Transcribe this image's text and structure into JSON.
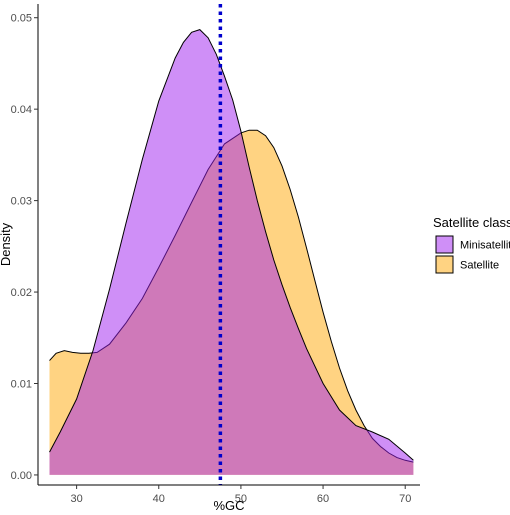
{
  "chart_data": {
    "type": "area",
    "subtype": "density",
    "xlabel": "%GC",
    "ylabel": "Density",
    "xlim": [
      25.3,
      71.8
    ],
    "ylim": [
      -0.0011,
      0.0515
    ],
    "x_ticks": [
      30,
      40,
      50,
      60,
      70
    ],
    "y_ticks": [
      0.0,
      0.01,
      0.02,
      0.03,
      0.04,
      0.05
    ],
    "y_tick_labels": [
      "0.00",
      "0.01",
      "0.02",
      "0.03",
      "0.04",
      "0.05"
    ],
    "x_tick_labels": [
      "30",
      "40",
      "50",
      "60",
      "70"
    ],
    "grid": false,
    "legend": {
      "title": "Satellite class",
      "position": "right"
    },
    "vline": {
      "x": 47.5,
      "color": "#0000cc",
      "style": "dotted"
    },
    "series": [
      {
        "name": "Satellite",
        "color": "#ffc04d",
        "opacity": 0.7,
        "x": [
          26.7,
          27.5,
          28.5,
          29.5,
          30.5,
          31.5,
          32.5,
          34,
          36,
          38,
          40,
          42,
          44,
          46,
          48,
          50,
          51,
          52,
          53,
          54,
          55,
          56,
          57,
          58,
          59,
          60,
          61,
          62,
          63,
          64,
          65,
          66,
          67,
          68,
          69,
          70,
          71
        ],
        "y": [
          0.0125,
          0.0133,
          0.0136,
          0.0134,
          0.0133,
          0.0133,
          0.0134,
          0.0143,
          0.0166,
          0.0193,
          0.0227,
          0.0262,
          0.0298,
          0.0334,
          0.0362,
          0.0374,
          0.0377,
          0.0377,
          0.0371,
          0.0358,
          0.0338,
          0.0312,
          0.0282,
          0.0248,
          0.0213,
          0.0178,
          0.0146,
          0.0117,
          0.0092,
          0.0071,
          0.0054,
          0.004,
          0.0031,
          0.0024,
          0.0019,
          0.0016,
          0.0014
        ]
      },
      {
        "name": "Minisatellite",
        "color": "#a020f0",
        "opacity": 0.5,
        "x": [
          26.7,
          28,
          30,
          32,
          34,
          36,
          38,
          40,
          42,
          43,
          44,
          45,
          46,
          47,
          48,
          49,
          50,
          51,
          52,
          53,
          54,
          55,
          56,
          57,
          58,
          60,
          62,
          64,
          66,
          68,
          70,
          71
        ],
        "y": [
          0.0025,
          0.0047,
          0.0083,
          0.0136,
          0.0203,
          0.0275,
          0.0345,
          0.0409,
          0.0456,
          0.0473,
          0.0484,
          0.0487,
          0.0478,
          0.046,
          0.0436,
          0.041,
          0.0376,
          0.0337,
          0.03,
          0.0266,
          0.0235,
          0.0208,
          0.0183,
          0.016,
          0.0138,
          0.01,
          0.0071,
          0.0054,
          0.0047,
          0.0039,
          0.0024,
          0.0016
        ]
      }
    ]
  }
}
